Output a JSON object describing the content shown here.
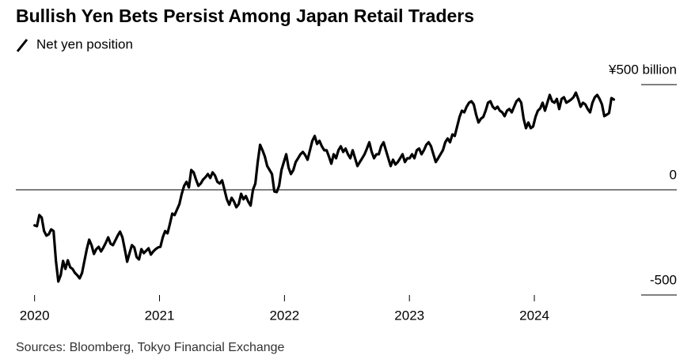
{
  "chart_data": {
    "type": "line",
    "title": "Bullish Yen Bets Persist Among Japan Retail Traders",
    "source": "Sources: Bloomberg, Tokyo Financial Exchange",
    "x": [
      2020,
      2020.019,
      2020.038,
      2020.057,
      2020.076,
      2020.095,
      2020.114,
      2020.133,
      2020.152,
      2020.171,
      2020.19,
      2020.209,
      2020.228,
      2020.247,
      2020.266,
      2020.285,
      2020.304,
      2020.323,
      2020.342,
      2020.361,
      2020.38,
      2020.399,
      2020.418,
      2020.437,
      2020.456,
      2020.475,
      2020.494,
      2020.513,
      2020.532,
      2020.551,
      2020.57,
      2020.589,
      2020.608,
      2020.627,
      2020.646,
      2020.665,
      2020.684,
      2020.703,
      2020.722,
      2020.741,
      2020.76,
      2020.779,
      2020.798,
      2020.817,
      2020.836,
      2020.855,
      2020.874,
      2020.893,
      2020.912,
      2020.931,
      2020.95,
      2020.969,
      2020.988,
      2021.007,
      2021.026,
      2021.045,
      2021.064,
      2021.083,
      2021.102,
      2021.121,
      2021.14,
      2021.159,
      2021.178,
      2021.197,
      2021.216,
      2021.235,
      2021.254,
      2021.273,
      2021.292,
      2021.311,
      2021.33,
      2021.349,
      2021.368,
      2021.387,
      2021.406,
      2021.425,
      2021.444,
      2021.463,
      2021.482,
      2021.501,
      2021.52,
      2021.539,
      2021.558,
      2021.577,
      2021.596,
      2021.615,
      2021.634,
      2021.653,
      2021.672,
      2021.691,
      2021.71,
      2021.729,
      2021.748,
      2021.767,
      2021.786,
      2021.805,
      2021.824,
      2021.843,
      2021.862,
      2021.881,
      2021.9,
      2021.919,
      2021.938,
      2021.957,
      2021.976,
      2021.995,
      2022.014,
      2022.033,
      2022.052,
      2022.071,
      2022.09,
      2022.109,
      2022.128,
      2022.147,
      2022.166,
      2022.185,
      2022.204,
      2022.223,
      2022.242,
      2022.261,
      2022.28,
      2022.299,
      2022.318,
      2022.337,
      2022.356,
      2022.375,
      2022.394,
      2022.413,
      2022.432,
      2022.451,
      2022.47,
      2022.489,
      2022.508,
      2022.527,
      2022.546,
      2022.565,
      2022.584,
      2022.603,
      2022.622,
      2022.641,
      2022.66,
      2022.679,
      2022.698,
      2022.717,
      2022.736,
      2022.755,
      2022.774,
      2022.793,
      2022.812,
      2022.831,
      2022.85,
      2022.869,
      2022.888,
      2022.907,
      2022.926,
      2022.945,
      2022.964,
      2022.983,
      2023.002,
      2023.021,
      2023.04,
      2023.059,
      2023.078,
      2023.097,
      2023.116,
      2023.135,
      2023.154,
      2023.173,
      2023.192,
      2023.211,
      2023.23,
      2023.249,
      2023.268,
      2023.287,
      2023.306,
      2023.325,
      2023.344,
      2023.363,
      2023.382,
      2023.401,
      2023.42,
      2023.439,
      2023.458,
      2023.477,
      2023.496,
      2023.515,
      2023.534,
      2023.553,
      2023.572,
      2023.591,
      2023.61,
      2023.629,
      2023.648,
      2023.667,
      2023.686,
      2023.705,
      2023.724,
      2023.743,
      2023.762,
      2023.781,
      2023.8,
      2023.819,
      2023.838,
      2023.857,
      2023.876,
      2023.895,
      2023.914,
      2023.933,
      2023.952,
      2023.971,
      2023.99,
      2024.009,
      2024.028,
      2024.047,
      2024.066,
      2024.085,
      2024.104,
      2024.123,
      2024.142,
      2024.161,
      2024.18,
      2024.199,
      2024.218,
      2024.237,
      2024.256,
      2024.275,
      2024.294,
      2024.313,
      2024.332,
      2024.351,
      2024.37,
      2024.389,
      2024.408,
      2024.427,
      2024.446,
      2024.465,
      2024.484,
      2024.503,
      2024.522,
      2024.541,
      2024.56,
      2024.579,
      2024.598,
      2024.617,
      2024.636
    ],
    "series": [
      {
        "name": "Net yen position",
        "color": "#000000",
        "values": [
          -169,
          -173,
          -120,
          -132,
          -196,
          -218,
          -211,
          -188,
          -196,
          -338,
          -436,
          -406,
          -338,
          -376,
          -335,
          -368,
          -376,
          -395,
          -406,
          -421,
          -395,
          -338,
          -282,
          -237,
          -263,
          -305,
          -282,
          -271,
          -293,
          -274,
          -252,
          -226,
          -256,
          -263,
          -241,
          -218,
          -199,
          -226,
          -282,
          -342,
          -301,
          -263,
          -274,
          -320,
          -331,
          -282,
          -301,
          -290,
          -278,
          -308,
          -293,
          -282,
          -274,
          -271,
          -226,
          -196,
          -207,
          -162,
          -113,
          -120,
          -94,
          -68,
          -19,
          19,
          38,
          11,
          94,
          83,
          49,
          19,
          30,
          49,
          60,
          75,
          56,
          83,
          68,
          38,
          30,
          45,
          0,
          -45,
          -71,
          -38,
          -56,
          -83,
          -68,
          -19,
          -45,
          -30,
          -56,
          -75,
          0,
          30,
          132,
          214,
          188,
          158,
          113,
          94,
          75,
          -8,
          -11,
          19,
          94,
          132,
          169,
          105,
          75,
          94,
          132,
          150,
          169,
          180,
          165,
          143,
          188,
          233,
          256,
          218,
          233,
          207,
          188,
          188,
          158,
          124,
          169,
          150,
          188,
          207,
          180,
          196,
          169,
          150,
          188,
          150,
          113,
          132,
          150,
          169,
          196,
          226,
          180,
          150,
          169,
          169,
          207,
          226,
          188,
          150,
          113,
          143,
          120,
          132,
          150,
          169,
          132,
          150,
          150,
          169,
          150,
          188,
          196,
          169,
          188,
          214,
          226,
          207,
          169,
          132,
          150,
          169,
          188,
          226,
          244,
          226,
          263,
          256,
          301,
          346,
          376,
          368,
          395,
          414,
          421,
          406,
          357,
          320,
          338,
          346,
          376,
          414,
          421,
          395,
          384,
          395,
          376,
          368,
          350,
          376,
          384,
          368,
          395,
          421,
          432,
          414,
          338,
          293,
          320,
          293,
          301,
          346,
          376,
          387,
          414,
          376,
          414,
          451,
          421,
          414,
          432,
          384,
          432,
          440,
          414,
          421,
          429,
          440,
          462,
          432,
          395,
          414,
          406,
          384,
          368,
          414,
          440,
          451,
          432,
          406,
          350,
          357,
          365,
          436,
          429
        ]
      }
    ],
    "xlim": [
      2019.85,
      2025.14
    ],
    "xticks": [
      2020,
      2021,
      2022,
      2023,
      2024
    ],
    "ylim": [
      -500,
      500
    ],
    "yticks": [
      -500,
      0,
      {
        "value": 500,
        "label": "¥500 billion"
      }
    ]
  }
}
